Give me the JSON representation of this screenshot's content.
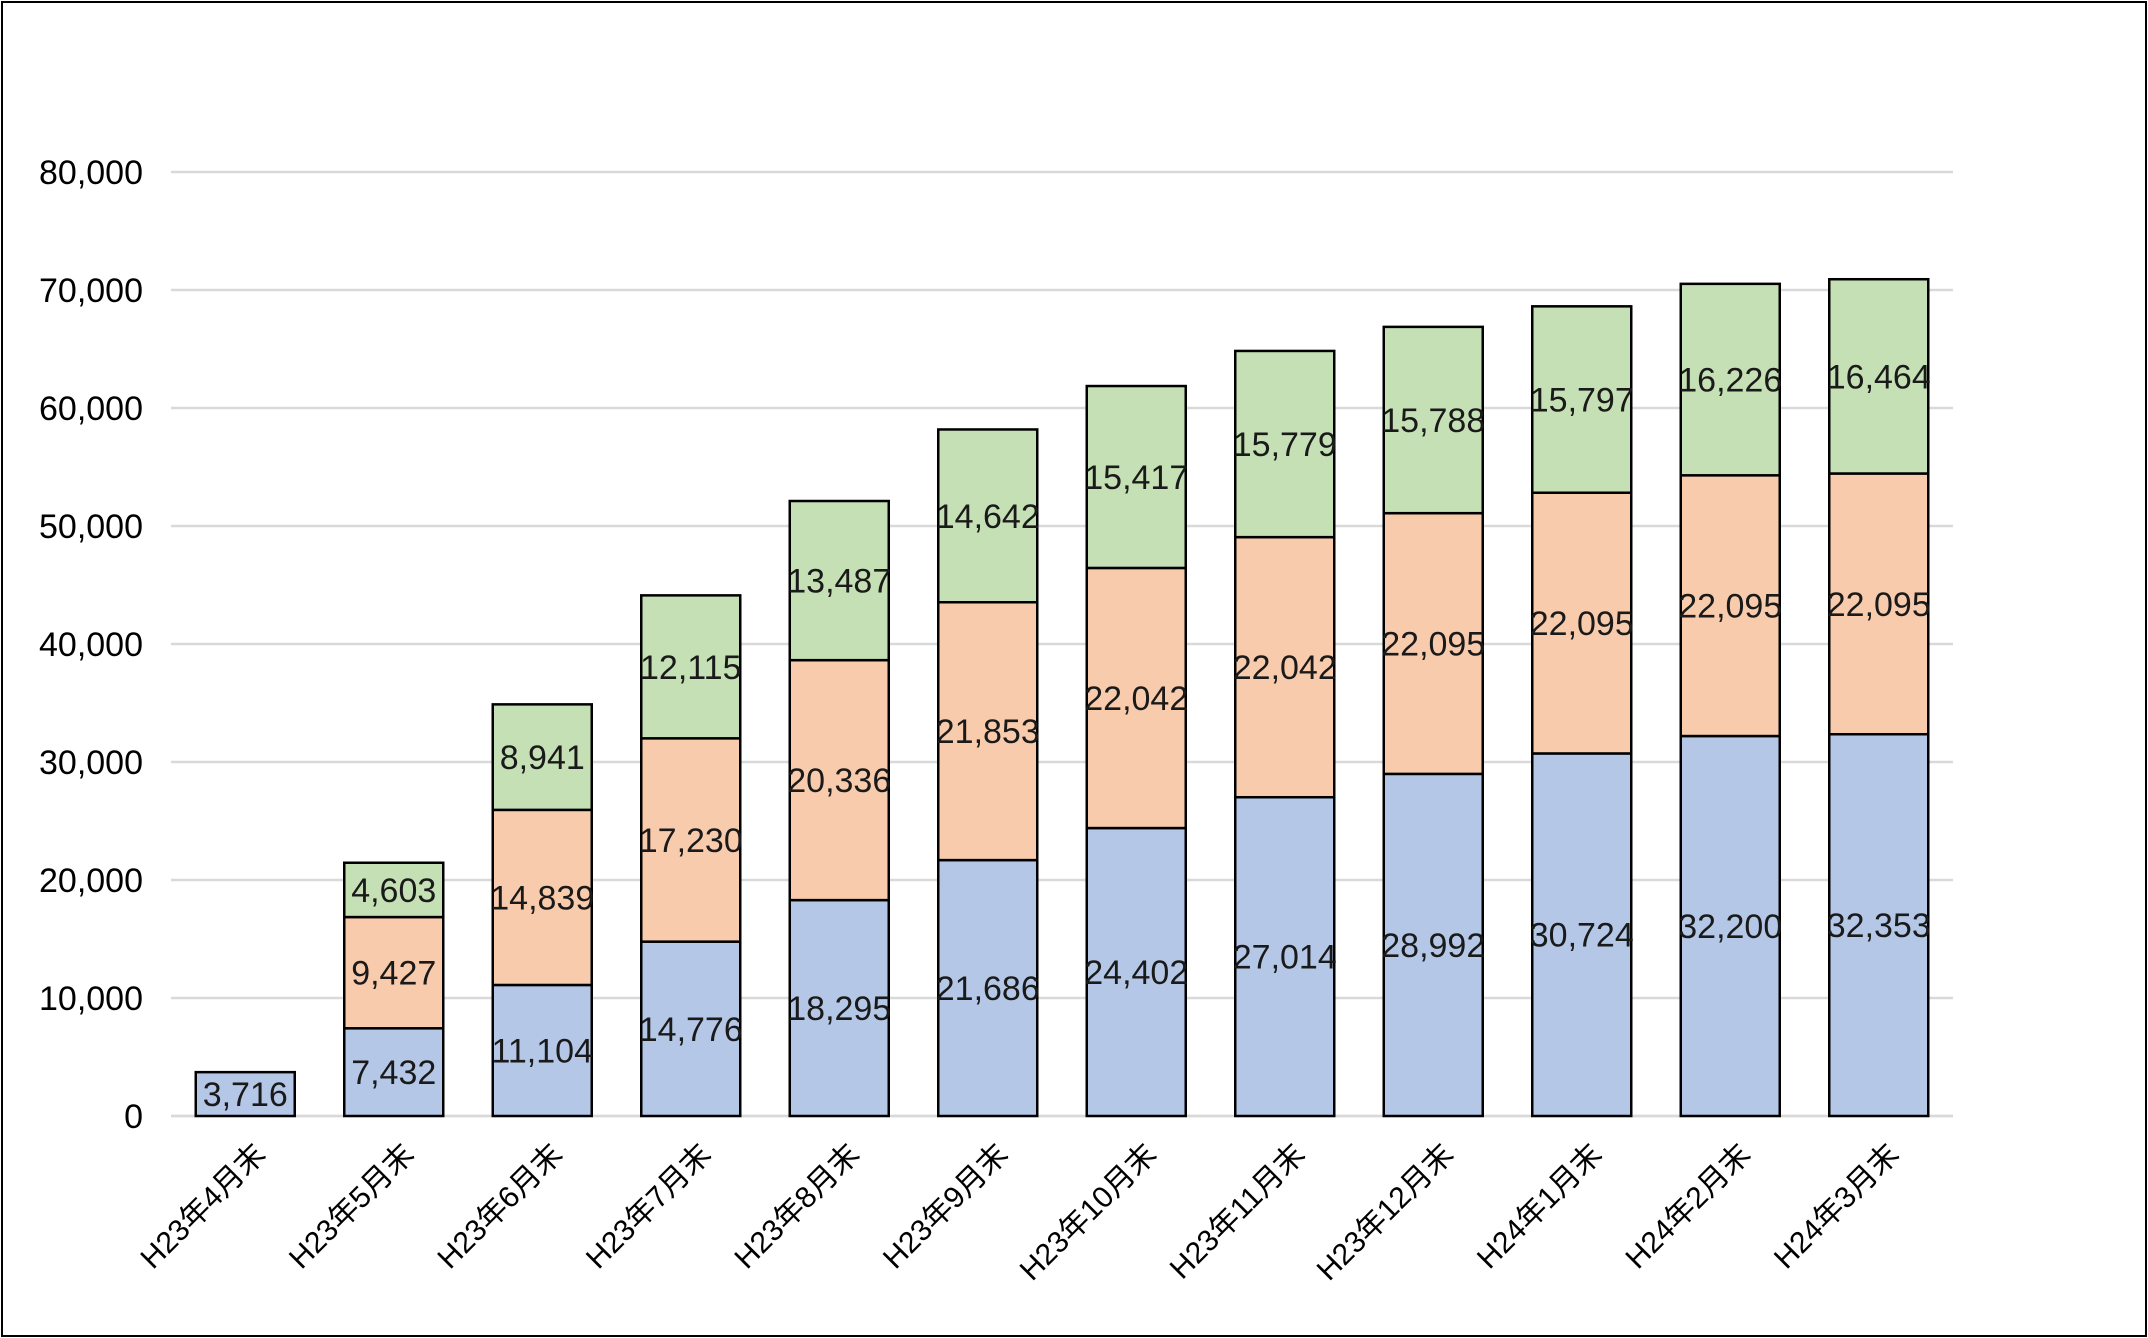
{
  "chart_data": {
    "type": "bar",
    "stacked": true,
    "title": "",
    "xlabel": "",
    "ylabel": "",
    "ylim": [
      0,
      80000
    ],
    "yticks": [
      0,
      10000,
      20000,
      30000,
      40000,
      50000,
      60000,
      70000,
      80000
    ],
    "ytick_labels": [
      "0",
      "10,000",
      "20,000",
      "30,000",
      "40,000",
      "50,000",
      "60,000",
      "70,000",
      "80,000"
    ],
    "grid": true,
    "legend": "none",
    "categories": [
      "H23年4月末",
      "H23年5月末",
      "H23年6月末",
      "H23年7月末",
      "H23年8月末",
      "H23年9月末",
      "H23年10月末",
      "H23年11月末",
      "H23年12月末",
      "H24年1月末",
      "H24年2月末",
      "H24年3月末"
    ],
    "series": [
      {
        "color": "#b4c7e7",
        "values": [
          3716,
          7432,
          11104,
          14776,
          18295,
          21686,
          24402,
          27014,
          28992,
          30724,
          32200,
          32353
        ],
        "labels": [
          "3,716",
          "7,432",
          "11,104",
          "14,776",
          "18,295",
          "21,686",
          "24,402",
          "27,014",
          "28,992",
          "30,724",
          "32,200",
          "32,353"
        ]
      },
      {
        "color": "#f8cbad",
        "values": [
          null,
          9427,
          14839,
          17230,
          20336,
          21853,
          22042,
          22042,
          22095,
          22095,
          22095,
          22095
        ],
        "labels": [
          "",
          "9,427",
          "14,839",
          "17,230",
          "20,336",
          "21,853",
          "22,042",
          "22,042",
          "22,095",
          "22,095",
          "22,095",
          "22,095"
        ]
      },
      {
        "color": "#c5e0b4",
        "values": [
          null,
          4603,
          8941,
          12115,
          13487,
          14642,
          15417,
          15779,
          15788,
          15797,
          16226,
          16464
        ],
        "labels": [
          "",
          "4,603",
          "8,941",
          "12,115",
          "13,487",
          "14,642",
          "15,417",
          "15,779",
          "15,788",
          "15,797",
          "16,226",
          "16,464"
        ]
      }
    ]
  }
}
